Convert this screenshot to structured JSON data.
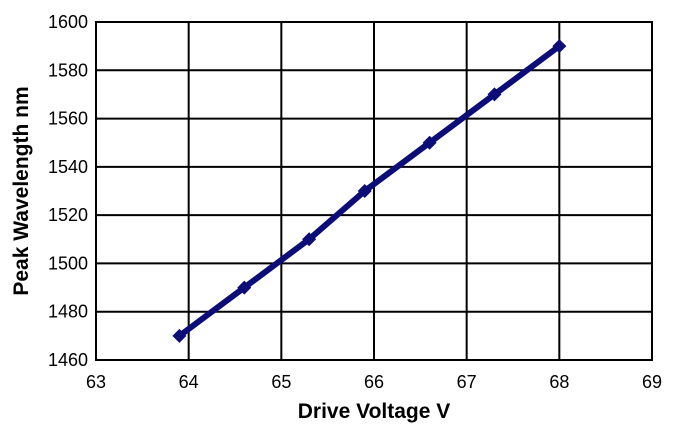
{
  "chart_data": {
    "type": "line",
    "x_label": "Drive Voltage V",
    "y_label": "Peak Wavelength nm",
    "x": [
      63.9,
      64.6,
      65.3,
      65.9,
      66.6,
      67.3,
      68.0
    ],
    "series": [
      {
        "color": "#0d0d78",
        "values": [
          1470,
          1490,
          1510,
          1530,
          1550,
          1570,
          1590
        ]
      }
    ],
    "xlim": [
      63,
      69
    ],
    "xticks": [
      63,
      64,
      65,
      66,
      67,
      68,
      69
    ],
    "ylim": [
      1460,
      1600
    ],
    "yticks": [
      1460,
      1480,
      1500,
      1520,
      1540,
      1560,
      1580,
      1600
    ],
    "grid": true
  }
}
